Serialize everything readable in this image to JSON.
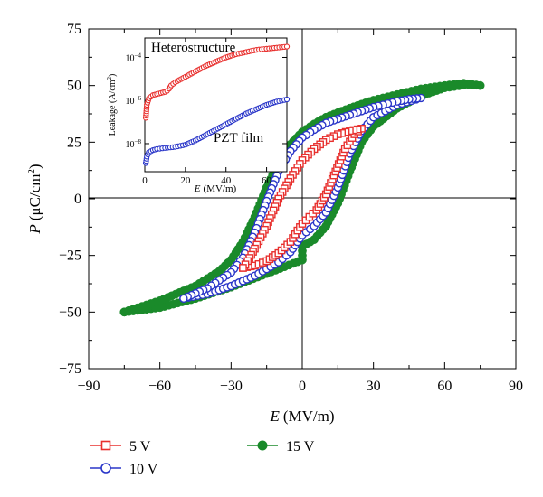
{
  "chart_data": [
    {
      "type": "scatter",
      "xlabel_sym": "E",
      "xlabel_unit": "(MV/m)",
      "ylabel_sym": "P",
      "ylabel_unit": "(μC/cm",
      "ylabel_sup": "2",
      "ylabel_close": ")",
      "xlim": [
        -90,
        90
      ],
      "ylim": [
        -75,
        75
      ],
      "xticks": [
        -90,
        -60,
        -30,
        0,
        30,
        60,
        90
      ],
      "yticks": [
        -75,
        -50,
        -25,
        0,
        25,
        50,
        75
      ],
      "xtick_labels": [
        "−90",
        "−60",
        "−30",
        "0",
        "30",
        "60",
        "90"
      ],
      "ytick_labels": [
        "−75",
        "−50",
        "−25",
        "0",
        "25",
        "50",
        "75"
      ],
      "legend_position": "bottom",
      "series": [
        {
          "name": "5 V",
          "color": "#e8302e",
          "marker": "open-square",
          "lower_branch": [
            [
              -25,
              -30.5
            ],
            [
              -20,
              -29.5
            ],
            [
              -15,
              -27.5
            ],
            [
              -10,
              -24
            ],
            [
              -5,
              -19
            ],
            [
              -2,
              -14
            ],
            [
              0,
              -11
            ],
            [
              3,
              -8
            ],
            [
              6,
              -5
            ],
            [
              10,
              2
            ],
            [
              14,
              12
            ],
            [
              18,
              22
            ],
            [
              22,
              28.5
            ],
            [
              25,
              31
            ]
          ],
          "upper_branch": [
            [
              25,
              31
            ],
            [
              20,
              30
            ],
            [
              15,
              28.5
            ],
            [
              10,
              26
            ],
            [
              5,
              22
            ],
            [
              0,
              17
            ],
            [
              -5,
              9
            ],
            [
              -10,
              0
            ],
            [
              -15,
              -12
            ],
            [
              -20,
              -22
            ],
            [
              -23,
              -27.5
            ],
            [
              -25,
              -30.5
            ]
          ]
        },
        {
          "name": "10 V",
          "color": "#2a36c9",
          "marker": "open-circle",
          "lower_branch": [
            [
              -50,
              -44
            ],
            [
              -40,
              -42
            ],
            [
              -30,
              -38.5
            ],
            [
              -20,
              -34
            ],
            [
              -10,
              -28
            ],
            [
              -5,
              -23.5
            ],
            [
              0,
              -16
            ],
            [
              5,
              -12
            ],
            [
              10,
              -6
            ],
            [
              15,
              5
            ],
            [
              20,
              20
            ],
            [
              25,
              30
            ],
            [
              30,
              36
            ],
            [
              40,
              41.5
            ],
            [
              50,
              44.5
            ]
          ],
          "upper_branch": [
            [
              50,
              44.5
            ],
            [
              45,
              44
            ],
            [
              40,
              43
            ],
            [
              30,
              40.5
            ],
            [
              20,
              37
            ],
            [
              10,
              33.5
            ],
            [
              5,
              30.5
            ],
            [
              0,
              27
            ],
            [
              -5,
              21
            ],
            [
              -10,
              12
            ],
            [
              -15,
              -1
            ],
            [
              -20,
              -15
            ],
            [
              -25,
              -26
            ],
            [
              -30,
              -32.5
            ],
            [
              -40,
              -39.5
            ],
            [
              -50,
              -44
            ]
          ]
        },
        {
          "name": "15 V",
          "color": "#1a8a2a",
          "marker": "filled-circle",
          "lower_branch": [
            [
              -75,
              -50
            ],
            [
              -60,
              -48
            ],
            [
              -45,
              -44
            ],
            [
              -30,
              -39
            ],
            [
              -15,
              -33
            ],
            [
              0,
              -27
            ],
            [
              0,
              -21
            ],
            [
              5,
              -18
            ],
            [
              10,
              -12
            ],
            [
              15,
              -2
            ],
            [
              20,
              12
            ],
            [
              25,
              25
            ],
            [
              30,
              32
            ],
            [
              40,
              40
            ],
            [
              50,
              45.5
            ],
            [
              60,
              49
            ],
            [
              70,
              50.5
            ],
            [
              75,
              50
            ]
          ],
          "upper_branch": [
            [
              75,
              50
            ],
            [
              68,
              51
            ],
            [
              60,
              50
            ],
            [
              50,
              48.5
            ],
            [
              40,
              46
            ],
            [
              30,
              43.5
            ],
            [
              20,
              40
            ],
            [
              10,
              36
            ],
            [
              5,
              33
            ],
            [
              0,
              29.5
            ],
            [
              -5,
              24
            ],
            [
              -10,
              16
            ],
            [
              -15,
              5
            ],
            [
              -20,
              -8
            ],
            [
              -25,
              -19
            ],
            [
              -30,
              -27
            ],
            [
              -35,
              -32
            ],
            [
              -45,
              -38.5
            ],
            [
              -60,
              -45
            ],
            [
              -75,
              -50
            ]
          ]
        }
      ]
    },
    {
      "type": "scatter",
      "xlabel_sym": "E",
      "xlabel_unit": "(MV/m)",
      "ylabel_text": "Leakage (A/cm",
      "ylabel_sup": "2",
      "ylabel_close": ")",
      "xlim": [
        0,
        70
      ],
      "ylim_log10": [
        -9.3,
        -3.1
      ],
      "yscale": "log",
      "xticks": [
        0,
        20,
        40,
        60
      ],
      "xtick_labels": [
        "0",
        "20",
        "40",
        "60"
      ],
      "yticks_exp": [
        -8,
        -6,
        -4
      ],
      "ytick_base": "10",
      "ytick_exps": [
        "−8",
        "−6",
        "−4"
      ],
      "annotations": [
        "Heterostructure",
        "PZT film"
      ],
      "series": [
        {
          "name": "Heterostructure",
          "color": "#e8302e",
          "points": [
            [
              0.5,
              -6.8
            ],
            [
              1,
              -6.2
            ],
            [
              2,
              -5.9
            ],
            [
              4,
              -5.75
            ],
            [
              6,
              -5.7
            ],
            [
              8,
              -5.65
            ],
            [
              10,
              -5.6
            ],
            [
              11,
              -5.55
            ],
            [
              12,
              -5.45
            ],
            [
              13,
              -5.3
            ],
            [
              15,
              -5.15
            ],
            [
              18,
              -5.0
            ],
            [
              22,
              -4.8
            ],
            [
              26,
              -4.6
            ],
            [
              30,
              -4.4
            ],
            [
              35,
              -4.2
            ],
            [
              40,
              -4.0
            ],
            [
              45,
              -3.85
            ],
            [
              50,
              -3.75
            ],
            [
              55,
              -3.65
            ],
            [
              60,
              -3.6
            ],
            [
              65,
              -3.55
            ],
            [
              70,
              -3.5
            ]
          ]
        },
        {
          "name": "PZT film",
          "color": "#2a36c9",
          "points": [
            [
              0.5,
              -8.9
            ],
            [
              1,
              -8.6
            ],
            [
              2,
              -8.4
            ],
            [
              4,
              -8.3
            ],
            [
              6,
              -8.25
            ],
            [
              10,
              -8.2
            ],
            [
              15,
              -8.15
            ],
            [
              20,
              -8.05
            ],
            [
              25,
              -7.85
            ],
            [
              30,
              -7.6
            ],
            [
              35,
              -7.35
            ],
            [
              40,
              -7.1
            ],
            [
              45,
              -6.85
            ],
            [
              50,
              -6.6
            ],
            [
              55,
              -6.4
            ],
            [
              60,
              -6.2
            ],
            [
              65,
              -6.05
            ],
            [
              70,
              -5.95
            ]
          ]
        }
      ]
    }
  ]
}
